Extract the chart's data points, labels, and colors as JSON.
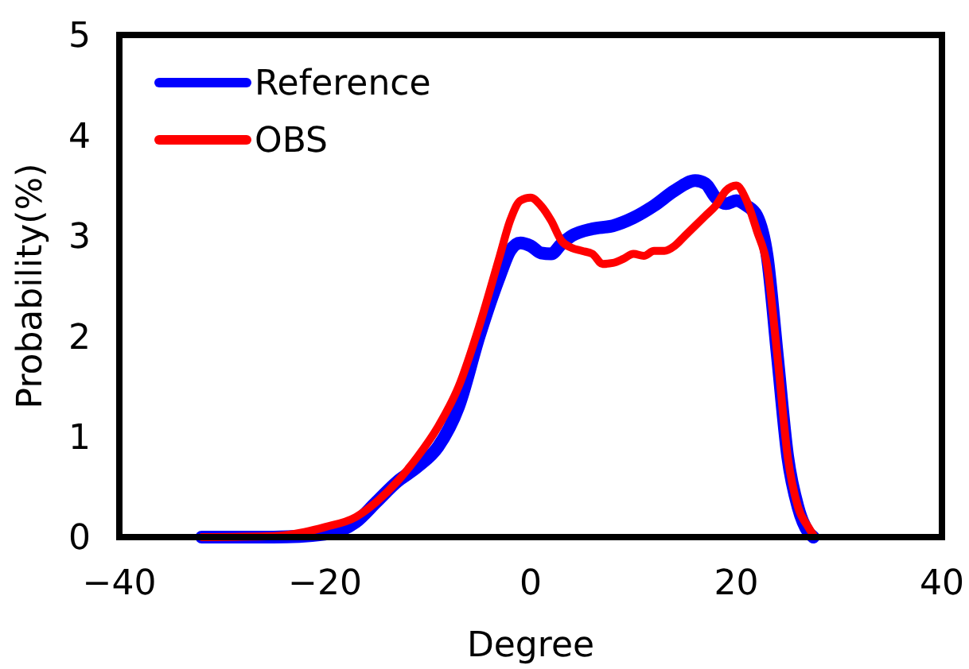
{
  "chart_data": {
    "type": "line",
    "xlabel": "Degree",
    "ylabel": "Probability(%)",
    "xlim": [
      -40,
      40
    ],
    "xticks": [
      -40,
      -20,
      0,
      20,
      40
    ],
    "ylim": [
      0,
      5
    ],
    "yticks": [
      0,
      1,
      2,
      3,
      4,
      5
    ],
    "legend": "top left",
    "grid": false,
    "line_style": "solid",
    "series": [
      {
        "name": "Reference",
        "color": "#0000ff",
        "x": [
          -32,
          -25,
          -20,
          -17,
          -15,
          -13,
          -11,
          -9,
          -7,
          -5,
          -3,
          -2,
          -1,
          0,
          1,
          2,
          3,
          4,
          6,
          8,
          10,
          12,
          14,
          16,
          17,
          18,
          19,
          20,
          21,
          22,
          23,
          24,
          25,
          26,
          27,
          27.5
        ],
        "values": [
          0,
          0,
          0.03,
          0.15,
          0.35,
          0.55,
          0.7,
          0.9,
          1.3,
          2.0,
          2.6,
          2.85,
          2.93,
          2.9,
          2.83,
          2.82,
          2.92,
          3.0,
          3.07,
          3.1,
          3.18,
          3.3,
          3.45,
          3.55,
          3.52,
          3.38,
          3.32,
          3.35,
          3.3,
          3.2,
          2.8,
          1.8,
          0.8,
          0.3,
          0.05,
          0
        ]
      },
      {
        "name": "OBS",
        "color": "#ff0000",
        "x": [
          -32,
          -25,
          -22,
          -20,
          -17,
          -15,
          -13,
          -11,
          -9,
          -7,
          -5,
          -3,
          -2,
          -1,
          0,
          1,
          2,
          3,
          4,
          5,
          6,
          7,
          8,
          9,
          10,
          11,
          12,
          13,
          14,
          15,
          17,
          18,
          19,
          20,
          21,
          22,
          23,
          24,
          25,
          26,
          27,
          27.5
        ],
        "values": [
          0,
          0.01,
          0.05,
          0.1,
          0.2,
          0.35,
          0.55,
          0.8,
          1.1,
          1.5,
          2.1,
          2.8,
          3.15,
          3.35,
          3.38,
          3.3,
          3.15,
          2.95,
          2.88,
          2.85,
          2.82,
          2.72,
          2.73,
          2.77,
          2.82,
          2.8,
          2.85,
          2.85,
          2.9,
          3.0,
          3.2,
          3.3,
          3.45,
          3.5,
          3.35,
          3.05,
          2.7,
          1.8,
          0.8,
          0.3,
          0.1,
          0.02
        ]
      }
    ]
  }
}
